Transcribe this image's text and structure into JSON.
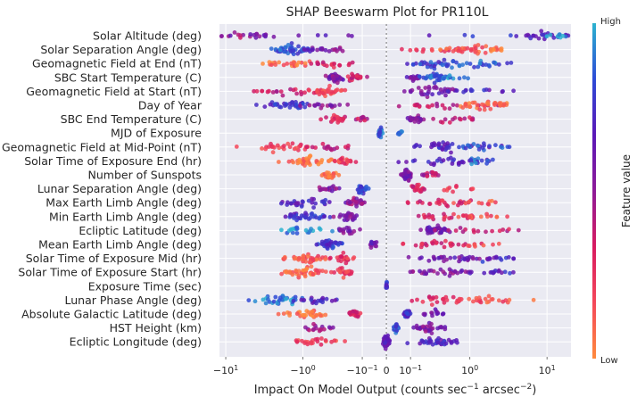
{
  "chart_data": {
    "type": "scatter",
    "subtype": "shap-beeswarm",
    "title": "SHAP Beeswarm Plot for PR110L",
    "xlabel_parts": [
      "Impact On Model Output (counts sec",
      "−1",
      " arcsec",
      "−2",
      ")"
    ],
    "xscale": "symlog",
    "xlim": [
      -12,
      20
    ],
    "reference_line_x": 0,
    "xticks": [
      {
        "value": -10,
        "base": "−10",
        "exp": "1"
      },
      {
        "value": -1,
        "base": "−10",
        "exp": "0"
      },
      {
        "value": -0.1,
        "base": "−10",
        "exp": "−1"
      },
      {
        "value": 0,
        "base": "0",
        "exp": ""
      },
      {
        "value": 0.1,
        "base": "10",
        "exp": "−1"
      },
      {
        "value": 1,
        "base": "10",
        "exp": "0"
      },
      {
        "value": 10,
        "base": "10",
        "exp": "1"
      }
    ],
    "features": [
      "Solar Altitude (deg)",
      "Solar Separation Angle (deg)",
      "Geomagnetic Field at End (nT)",
      "SBC Start Temperature (C)",
      "Geomagnetic Field at Start (nT)",
      "Day of Year",
      "SBC End Temperature (C)",
      "MJD of Exposure",
      "Geomagnetic Field at Mid-Point (nT)",
      "Solar Time of Exposure End (hr)",
      "Number of Sunspots",
      "Lunar Separation Angle (deg)",
      "Max Earth Limb Angle (deg)",
      "Min Earth Limb Angle (deg)",
      "Ecliptic Latitude (deg)",
      "Mean Earth Limb Angle (deg)",
      "Solar Time of Exposure Mid (hr)",
      "Solar Time of Exposure Start (hr)",
      "Exposure Time (sec)",
      "Lunar Phase Angle (deg)",
      "Absolute Galactic Latitude (deg)",
      "HST Height (km)",
      "Ecliptic Longitude (deg)"
    ],
    "clusters": [
      [
        [
          -9.8,
          0.9,
          14,
          0.45
        ],
        [
          -4,
          0.5,
          10,
          0.65
        ],
        [
          -0.8,
          0.7,
          4,
          0.6
        ],
        [
          0.8,
          0.7,
          4,
          0.75
        ],
        [
          9,
          0.35,
          22,
          0.7
        ],
        [
          15,
          0.2,
          8,
          0.98
        ]
      ],
      [
        [
          -1.4,
          0.22,
          40,
          0.82
        ],
        [
          -0.7,
          0.3,
          12,
          0.6
        ],
        [
          -0.3,
          0.25,
          8,
          0.5
        ],
        [
          0.35,
          0.45,
          16,
          0.25
        ],
        [
          1,
          0.4,
          28,
          0.12
        ],
        [
          2.5,
          0.2,
          10,
          0.05
        ]
      ],
      [
        [
          -1.5,
          0.5,
          22,
          0.08
        ],
        [
          -0.3,
          0.4,
          18,
          0.3
        ],
        [
          0.4,
          0.5,
          34,
          0.8
        ],
        [
          1.4,
          0.4,
          20,
          0.85
        ]
      ],
      [
        [
          -0.35,
          0.15,
          30,
          0.55
        ],
        [
          -0.15,
          0.12,
          20,
          0.35
        ],
        [
          0.12,
          0.1,
          18,
          0.6
        ],
        [
          0.3,
          0.18,
          30,
          0.85
        ],
        [
          0.6,
          0.2,
          10,
          0.95
        ]
      ],
      [
        [
          -1.5,
          0.5,
          22,
          0.35
        ],
        [
          -0.45,
          0.25,
          30,
          0.2
        ],
        [
          0.25,
          0.45,
          34,
          0.6
        ],
        [
          1.1,
          0.4,
          14,
          0.7
        ]
      ],
      [
        [
          -1.6,
          0.35,
          34,
          0.75
        ],
        [
          -0.5,
          0.3,
          16,
          0.55
        ],
        [
          0.4,
          0.6,
          20,
          0.4
        ],
        [
          1.6,
          0.4,
          36,
          0.1
        ]
      ],
      [
        [
          -0.35,
          0.2,
          20,
          0.3
        ],
        [
          -0.1,
          0.1,
          10,
          0.4
        ],
        [
          0.15,
          0.15,
          20,
          0.55
        ],
        [
          0.6,
          0.4,
          14,
          0.35
        ]
      ],
      [
        [
          -0.02,
          0.03,
          24,
          0.85
        ],
        [
          0.05,
          0.05,
          10,
          0.9
        ]
      ],
      [
        [
          -1.9,
          0.5,
          28,
          0.2
        ],
        [
          -0.4,
          0.3,
          16,
          0.4
        ],
        [
          0.5,
          0.5,
          34,
          0.7
        ],
        [
          1.4,
          0.4,
          20,
          0.85
        ]
      ],
      [
        [
          -0.8,
          0.3,
          40,
          0.05
        ],
        [
          -0.25,
          0.2,
          20,
          0.2
        ],
        [
          0.45,
          0.5,
          30,
          0.7
        ],
        [
          1.6,
          0.4,
          14,
          0.85
        ]
      ],
      [
        [
          -0.4,
          0.12,
          24,
          0.05
        ],
        [
          0.08,
          0.06,
          40,
          0.6
        ],
        [
          0.25,
          0.1,
          14,
          0.4
        ]
      ],
      [
        [
          -0.45,
          0.2,
          16,
          0.55
        ],
        [
          -0.1,
          0.1,
          30,
          0.8
        ],
        [
          0.15,
          0.12,
          20,
          0.3
        ],
        [
          0.6,
          0.4,
          10,
          0.2
        ]
      ],
      [
        [
          -0.9,
          0.4,
          30,
          0.7
        ],
        [
          -0.15,
          0.15,
          24,
          0.5
        ],
        [
          0.5,
          0.5,
          24,
          0.3
        ],
        [
          1.5,
          0.4,
          10,
          0.15
        ]
      ],
      [
        [
          -0.9,
          0.3,
          36,
          0.75
        ],
        [
          -0.2,
          0.15,
          24,
          0.55
        ],
        [
          0.5,
          0.5,
          24,
          0.3
        ],
        [
          1.4,
          0.4,
          12,
          0.12
        ]
      ],
      [
        [
          -1,
          0.4,
          22,
          0.95
        ],
        [
          -0.2,
          0.15,
          16,
          0.55
        ],
        [
          0.3,
          0.2,
          40,
          0.6
        ],
        [
          1.2,
          0.5,
          16,
          0.35
        ]
      ],
      [
        [
          -0.4,
          0.2,
          36,
          0.75
        ],
        [
          -0.05,
          0.05,
          14,
          0.6
        ],
        [
          0.3,
          0.4,
          24,
          0.3
        ],
        [
          1.1,
          0.4,
          10,
          0.2
        ]
      ],
      [
        [
          -0.9,
          0.3,
          40,
          0.15
        ],
        [
          -0.25,
          0.15,
          20,
          0.25
        ],
        [
          0.6,
          0.5,
          30,
          0.6
        ],
        [
          1.7,
          0.4,
          14,
          0.75
        ]
      ],
      [
        [
          -0.9,
          0.3,
          40,
          0.1
        ],
        [
          -0.25,
          0.15,
          20,
          0.2
        ],
        [
          0.55,
          0.5,
          30,
          0.55
        ],
        [
          1.8,
          0.4,
          14,
          0.7
        ]
      ],
      [
        [
          0,
          0.01,
          12,
          0.75
        ]
      ],
      [
        [
          -1.9,
          0.5,
          34,
          0.9
        ],
        [
          -0.6,
          0.3,
          20,
          0.7
        ],
        [
          0.4,
          0.5,
          24,
          0.3
        ],
        [
          1.8,
          0.5,
          20,
          0.15
        ]
      ],
      [
        [
          -0.9,
          0.3,
          30,
          0.08
        ],
        [
          -0.15,
          0.1,
          20,
          0.3
        ],
        [
          0.08,
          0.05,
          30,
          0.75
        ],
        [
          0.3,
          0.2,
          14,
          0.6
        ]
      ],
      [
        [
          -0.6,
          0.3,
          16,
          0.5
        ],
        [
          0.03,
          0.03,
          30,
          0.85
        ],
        [
          0.25,
          0.2,
          30,
          0.55
        ]
      ],
      [
        [
          -0.6,
          0.3,
          24,
          0.2
        ],
        [
          0,
          0.05,
          44,
          0.65
        ],
        [
          0.35,
          0.35,
          34,
          0.7
        ]
      ]
    ],
    "colorbar": {
      "label": "Feature value",
      "high_label": "High",
      "low_label": "Low",
      "colors": [
        "#ff8a3d",
        "#f4485a",
        "#d81b60",
        "#8e1a98",
        "#5a18b8",
        "#2d4bd6",
        "#2cb3cf"
      ]
    },
    "background": "#eaeaf2",
    "grid_color": "#ffffff"
  }
}
